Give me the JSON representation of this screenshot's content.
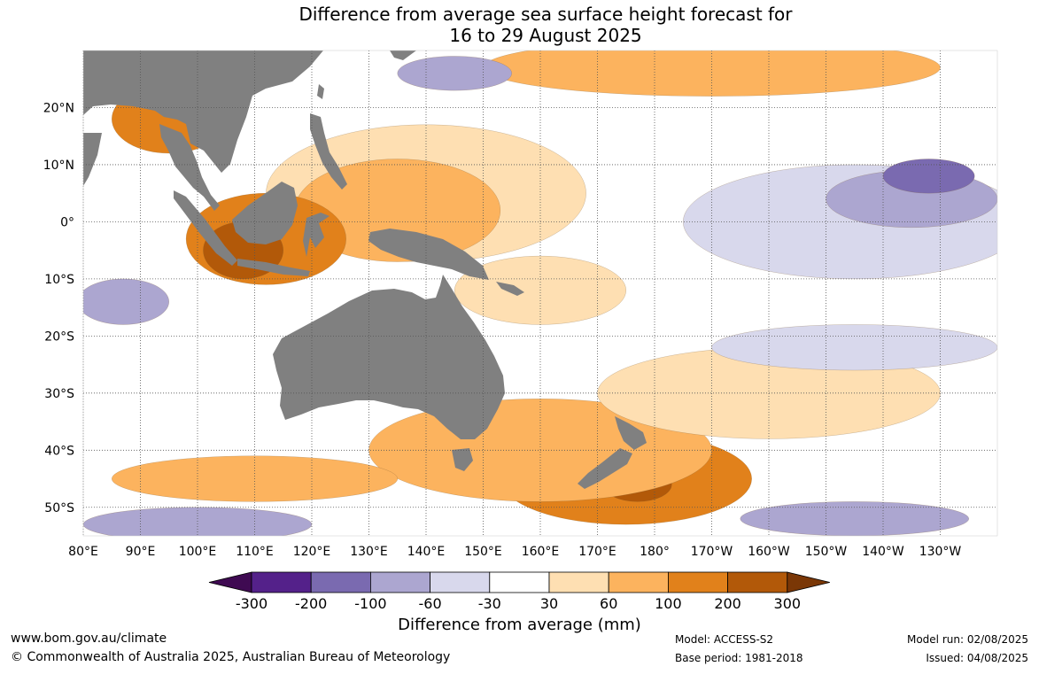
{
  "title": {
    "line1": "Difference from average sea surface height forecast for",
    "line2": "16 to 29 August 2025"
  },
  "map": {
    "lon_labels": [
      "80°E",
      "90°E",
      "100°E",
      "110°E",
      "120°E",
      "130°E",
      "140°E",
      "150°E",
      "160°E",
      "170°E",
      "180°",
      "170°W",
      "160°W",
      "150°W",
      "140°W",
      "130°W"
    ],
    "lat_labels": [
      "20°N",
      "10°N",
      "0°",
      "10°S",
      "20°S",
      "30°S",
      "40°S",
      "50°S"
    ],
    "lon_range": [
      80,
      240
    ],
    "lat_range": [
      -55,
      30
    ],
    "colors": {
      "land": "#808080",
      "ocean_neutral": "#ffffff",
      "grid": "#555555"
    },
    "anomaly_regions": [
      {
        "kind": "positive",
        "level": 30,
        "lon": 140,
        "lat": 5,
        "rlon": 28,
        "rlat": 12
      },
      {
        "kind": "positive",
        "level": 60,
        "lon": 135,
        "lat": 2,
        "rlon": 18,
        "rlat": 9
      },
      {
        "kind": "positive",
        "level": 100,
        "lon": 112,
        "lat": -3,
        "rlon": 14,
        "rlat": 8
      },
      {
        "kind": "positive",
        "level": 200,
        "lon": 108,
        "lat": -5,
        "rlon": 7,
        "rlat": 5
      },
      {
        "kind": "positive",
        "level": 100,
        "lon": 95,
        "lat": 18,
        "rlon": 10,
        "rlat": 6
      },
      {
        "kind": "positive",
        "level": 60,
        "lon": 190,
        "lat": 27,
        "rlon": 40,
        "rlat": 5
      },
      {
        "kind": "positive",
        "level": 100,
        "lon": 175,
        "lat": -45,
        "rlon": 22,
        "rlat": 8
      },
      {
        "kind": "positive",
        "level": 200,
        "lon": 177,
        "lat": -46,
        "rlon": 6,
        "rlat": 3
      },
      {
        "kind": "positive",
        "level": 60,
        "lon": 160,
        "lat": -40,
        "rlon": 30,
        "rlat": 9
      },
      {
        "kind": "positive",
        "level": 60,
        "lon": 110,
        "lat": -45,
        "rlon": 25,
        "rlat": 4
      },
      {
        "kind": "positive",
        "level": 30,
        "lon": 200,
        "lat": -30,
        "rlon": 30,
        "rlat": 8
      },
      {
        "kind": "positive",
        "level": 30,
        "lon": 160,
        "lat": -12,
        "rlon": 15,
        "rlat": 6
      },
      {
        "kind": "negative",
        "level": -30,
        "lon": 215,
        "lat": 0,
        "rlon": 30,
        "rlat": 10
      },
      {
        "kind": "negative",
        "level": -60,
        "lon": 225,
        "lat": 4,
        "rlon": 15,
        "rlat": 5
      },
      {
        "kind": "negative",
        "level": -100,
        "lon": 228,
        "lat": 8,
        "rlon": 8,
        "rlat": 3
      },
      {
        "kind": "negative",
        "level": -60,
        "lon": 87,
        "lat": -14,
        "rlon": 8,
        "rlat": 4
      },
      {
        "kind": "negative",
        "level": -30,
        "lon": 215,
        "lat": -22,
        "rlon": 25,
        "rlat": 4
      },
      {
        "kind": "negative",
        "level": -60,
        "lon": 100,
        "lat": -53,
        "rlon": 20,
        "rlat": 3
      },
      {
        "kind": "negative",
        "level": -60,
        "lon": 215,
        "lat": -52,
        "rlon": 20,
        "rlat": 3
      },
      {
        "kind": "negative",
        "level": -60,
        "lon": 145,
        "lat": 26,
        "rlon": 10,
        "rlat": 3
      }
    ]
  },
  "colorbar": {
    "ticks": [
      "-300",
      "-200",
      "-100",
      "-60",
      "-30",
      "30",
      "60",
      "100",
      "200",
      "300"
    ],
    "colors": [
      "#3f0a52",
      "#54218a",
      "#7a6ab0",
      "#aca6d0",
      "#d8d8ec",
      "#ffffff",
      "#fedfb2",
      "#fcb35e",
      "#e1811b",
      "#b25909",
      "#7a3706"
    ],
    "title": "Difference from average (mm)"
  },
  "footer": {
    "website": "www.bom.gov.au/climate",
    "copyright": "© Commonwealth of Australia 2025, Australian Bureau of Meteorology",
    "model": "Model: ACCESS-S2",
    "base_period": "Base period: 1981-2018",
    "model_run": "Model run: 02/08/2025",
    "issued": "Issued: 04/08/2025"
  }
}
